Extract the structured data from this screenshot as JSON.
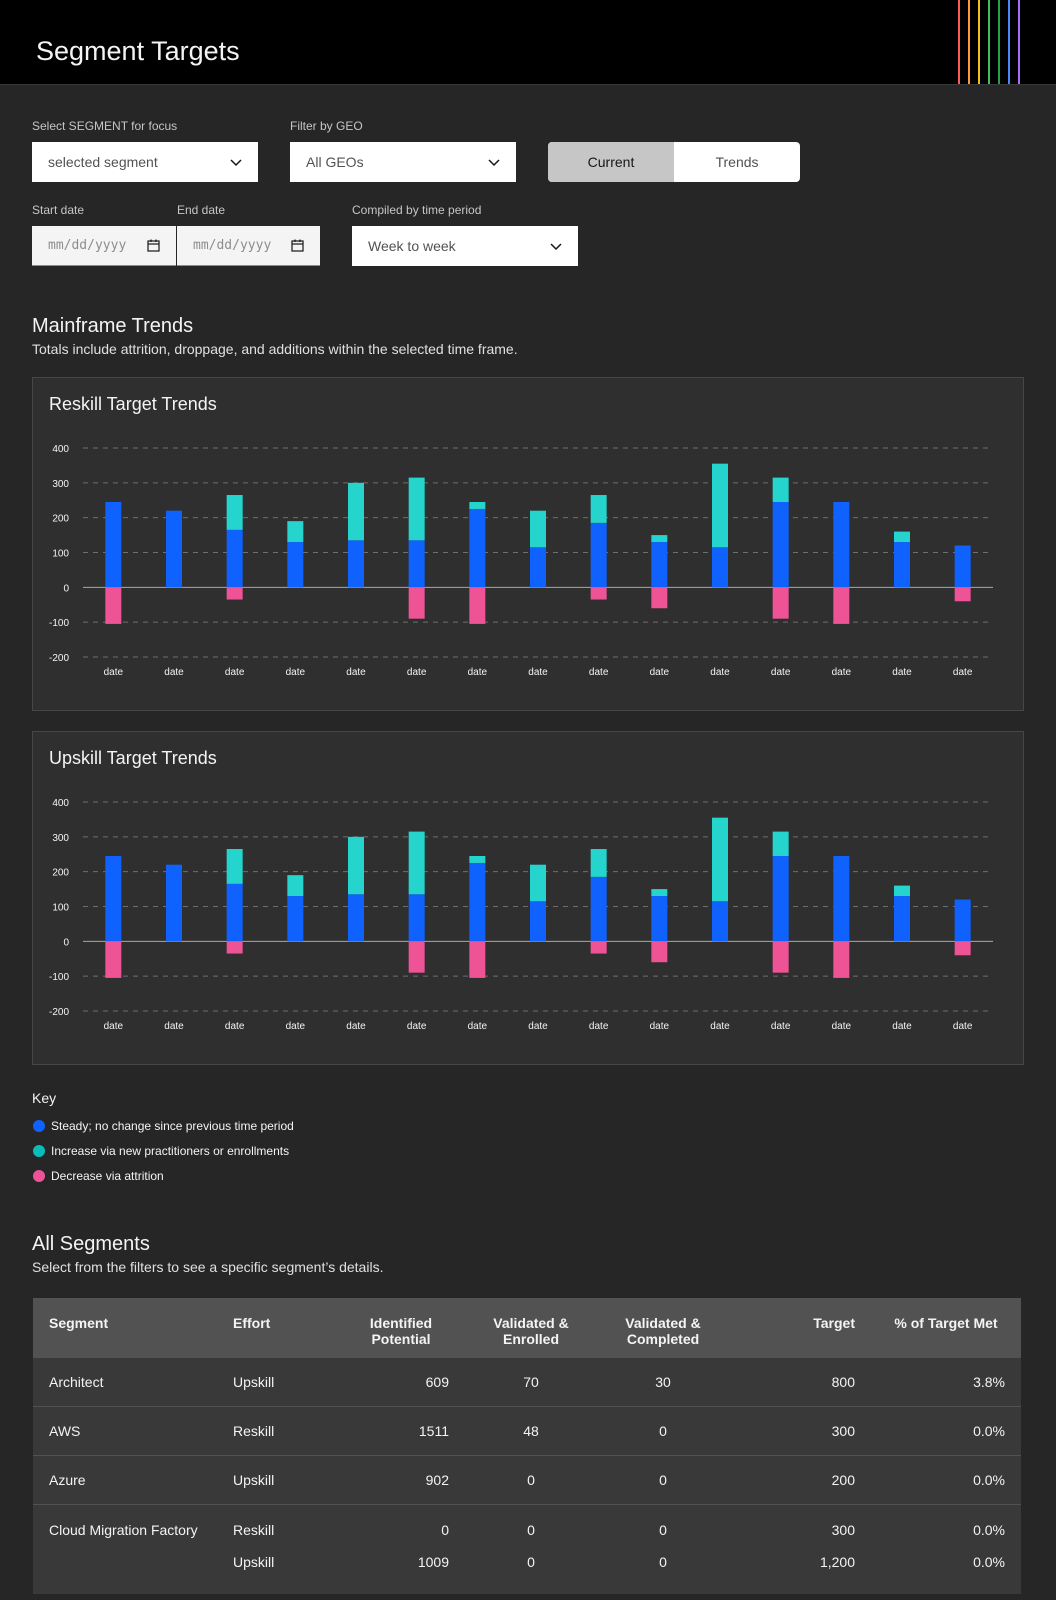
{
  "header": {
    "title": "Segment Targets"
  },
  "filters": {
    "segment_label": "Select SEGMENT for focus",
    "segment_value": "selected segment",
    "geo_label": "Filter by GEO",
    "geo_value": "All GEOs",
    "view_toggle": [
      "Current",
      "Trends"
    ],
    "active_view": "Current",
    "start_label": "Start date",
    "end_label": "End date",
    "start_placeholder": "mm/dd/yyyy",
    "end_placeholder": "mm/dd/yyyy",
    "period_label": "Compiled by time period",
    "period_value": "Week to week"
  },
  "trends": {
    "title": "Mainframe Trends",
    "subtitle": "Totals include attrition, droppage, and additions within the selected time frame."
  },
  "chart_data": [
    {
      "type": "bar",
      "title": "Reskill Target Trends",
      "categories": [
        "date",
        "date",
        "date",
        "date",
        "date",
        "date",
        "date",
        "date",
        "date",
        "date",
        "date",
        "date",
        "date",
        "date",
        "date"
      ],
      "ylim": [
        -200,
        400
      ],
      "yticks": [
        "400",
        "300",
        "200",
        "100",
        "0",
        "-100",
        "-200"
      ],
      "grid": true,
      "stacked": true,
      "series": [
        {
          "key": "steady",
          "values": [
            245,
            220,
            165,
            130,
            135,
            135,
            225,
            115,
            185,
            130,
            115,
            245,
            245,
            130,
            120
          ]
        },
        {
          "key": "increase",
          "values": [
            0,
            0,
            100,
            60,
            165,
            180,
            20,
            105,
            80,
            20,
            240,
            70,
            0,
            30,
            0
          ]
        },
        {
          "key": "decrease",
          "values": [
            -105,
            0,
            -35,
            0,
            0,
            -90,
            -105,
            0,
            -35,
            -60,
            0,
            -90,
            -105,
            0,
            -40
          ]
        }
      ]
    },
    {
      "type": "bar",
      "title": "Upskill Target Trends",
      "categories": [
        "date",
        "date",
        "date",
        "date",
        "date",
        "date",
        "date",
        "date",
        "date",
        "date",
        "date",
        "date",
        "date",
        "date",
        "date"
      ],
      "ylim": [
        -200,
        400
      ],
      "yticks": [
        "400",
        "300",
        "200",
        "100",
        "0",
        "-100",
        "-200"
      ],
      "grid": true,
      "stacked": true,
      "series": [
        {
          "key": "steady",
          "values": [
            245,
            220,
            165,
            130,
            135,
            135,
            225,
            115,
            185,
            130,
            115,
            245,
            245,
            130,
            120
          ]
        },
        {
          "key": "increase",
          "values": [
            0,
            0,
            100,
            60,
            165,
            180,
            20,
            105,
            80,
            20,
            240,
            70,
            0,
            30,
            0
          ]
        },
        {
          "key": "decrease",
          "values": [
            -105,
            0,
            -35,
            0,
            0,
            -90,
            -105,
            0,
            -35,
            -60,
            0,
            -90,
            -105,
            0,
            -40
          ]
        }
      ]
    }
  ],
  "colors": {
    "steady": "#0f62fe",
    "increase": "#25d4cc",
    "decrease": "#ee5396"
  },
  "key": {
    "title": "Key",
    "items": [
      {
        "label": "Steady; no change since previous time period",
        "color": "#0f62fe"
      },
      {
        "label": "Increase via new practitioners or enrollments",
        "color": "#08bdba"
      },
      {
        "label": "Decrease via attrition",
        "color": "#ee5396"
      }
    ]
  },
  "segments": {
    "title": "All Segments",
    "subtitle": "Select from the filters to see a specific segment’s details.",
    "columns": [
      "Segment",
      "Effort",
      "Identified Potential",
      "Validated & Enrolled",
      "Validated & Completed",
      "Target",
      "% of Target Met"
    ],
    "rows": [
      {
        "segment": "Architect",
        "efforts": [
          {
            "effort": "Upskill",
            "potential": "609",
            "enrolled": "70",
            "completed": "30",
            "target": "800",
            "met": "3.8%"
          }
        ]
      },
      {
        "segment": "AWS",
        "efforts": [
          {
            "effort": "Reskill",
            "potential": "1511",
            "enrolled": "48",
            "completed": "0",
            "target": "300",
            "met": "0.0%"
          }
        ]
      },
      {
        "segment": "Azure",
        "efforts": [
          {
            "effort": "Upskill",
            "potential": "902",
            "enrolled": "0",
            "completed": "0",
            "target": "200",
            "met": "0.0%"
          }
        ]
      },
      {
        "segment": "Cloud Migration Factory",
        "efforts": [
          {
            "effort": "Reskill",
            "potential": "0",
            "enrolled": "0",
            "completed": "0",
            "target": "300",
            "met": "0.0%"
          },
          {
            "effort": "Upskill",
            "potential": "1009",
            "enrolled": "0",
            "completed": "0",
            "target": "1,200",
            "met": "0.0%"
          }
        ]
      }
    ]
  }
}
